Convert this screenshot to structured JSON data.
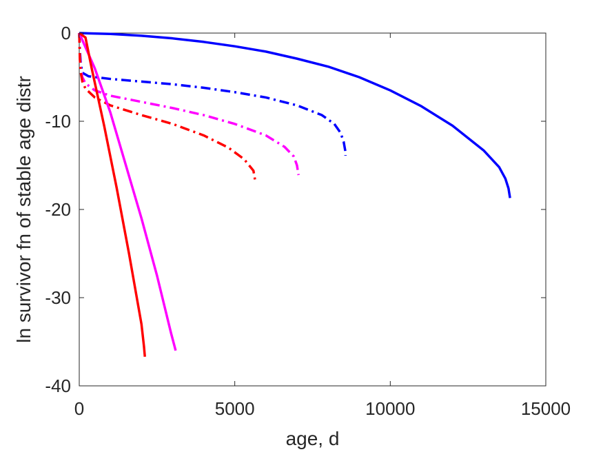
{
  "chart_data": {
    "type": "line",
    "title": "",
    "xlabel": "age, d",
    "ylabel": "ln survivor fn of stable age distr",
    "xlim": [
      0,
      15000
    ],
    "ylim": [
      -40,
      0
    ],
    "xticks": [
      0,
      5000,
      10000,
      15000
    ],
    "yticks": [
      0,
      -10,
      -20,
      -30,
      -40
    ],
    "xtick_labels": [
      "0",
      "5000",
      "10000",
      "15000"
    ],
    "ytick_labels": [
      "0",
      "-10",
      "-20",
      "-30",
      "-40"
    ],
    "grid": false,
    "legend": "none",
    "series": [
      {
        "color": "#0000ff",
        "style": "solid",
        "points": [
          [
            0,
            0
          ],
          [
            1000,
            -0.1
          ],
          [
            2000,
            -0.3
          ],
          [
            3000,
            -0.6
          ],
          [
            4000,
            -1.0
          ],
          [
            5000,
            -1.5
          ],
          [
            6000,
            -2.1
          ],
          [
            7000,
            -2.9
          ],
          [
            8000,
            -3.8
          ],
          [
            9000,
            -5.0
          ],
          [
            10000,
            -6.5
          ],
          [
            11000,
            -8.3
          ],
          [
            12000,
            -10.5
          ],
          [
            13000,
            -13.3
          ],
          [
            13500,
            -15.2
          ],
          [
            13700,
            -16.5
          ],
          [
            13800,
            -17.6
          ],
          [
            13850,
            -18.7
          ]
        ]
      },
      {
        "color": "#0000ff",
        "style": "dashdot",
        "points": [
          [
            0,
            0
          ],
          [
            20,
            -2.0
          ],
          [
            50,
            -3.5
          ],
          [
            100,
            -4.5
          ],
          [
            300,
            -4.9
          ],
          [
            1000,
            -5.2
          ],
          [
            2000,
            -5.5
          ],
          [
            3000,
            -5.8
          ],
          [
            4000,
            -6.2
          ],
          [
            5000,
            -6.7
          ],
          [
            6000,
            -7.3
          ],
          [
            7000,
            -8.2
          ],
          [
            7800,
            -9.3
          ],
          [
            8200,
            -10.3
          ],
          [
            8400,
            -11.3
          ],
          [
            8500,
            -12.3
          ],
          [
            8550,
            -13.3
          ],
          [
            8560,
            -13.9
          ]
        ]
      },
      {
        "color": "#ff00ff",
        "style": "dashdot",
        "points": [
          [
            0,
            0
          ],
          [
            20,
            -2.5
          ],
          [
            50,
            -4.0
          ],
          [
            100,
            -5.0
          ],
          [
            200,
            -5.7
          ],
          [
            500,
            -6.5
          ],
          [
            1000,
            -7.1
          ],
          [
            2000,
            -7.8
          ],
          [
            3000,
            -8.5
          ],
          [
            4000,
            -9.3
          ],
          [
            5000,
            -10.3
          ],
          [
            6000,
            -11.6
          ],
          [
            6600,
            -12.9
          ],
          [
            6900,
            -14.0
          ],
          [
            7000,
            -15.0
          ],
          [
            7050,
            -16.1
          ]
        ]
      },
      {
        "color": "#ff0000",
        "style": "dashdot",
        "points": [
          [
            0,
            0
          ],
          [
            20,
            -3.0
          ],
          [
            50,
            -4.5
          ],
          [
            100,
            -5.5
          ],
          [
            200,
            -6.3
          ],
          [
            500,
            -7.3
          ],
          [
            1000,
            -8.2
          ],
          [
            2000,
            -9.3
          ],
          [
            3000,
            -10.3
          ],
          [
            4000,
            -11.6
          ],
          [
            4800,
            -13.0
          ],
          [
            5300,
            -14.3
          ],
          [
            5600,
            -15.6
          ],
          [
            5650,
            -16.6
          ]
        ]
      },
      {
        "color": "#ff00ff",
        "style": "solid",
        "points": [
          [
            0,
            0
          ],
          [
            500,
            -4.0
          ],
          [
            1000,
            -9.0
          ],
          [
            1500,
            -15.0
          ],
          [
            2000,
            -21.0
          ],
          [
            2500,
            -27.5
          ],
          [
            2950,
            -34.0
          ],
          [
            3100,
            -36.0
          ]
        ]
      },
      {
        "color": "#ff0000",
        "style": "solid",
        "points": [
          [
            0,
            0
          ],
          [
            200,
            -0.5
          ],
          [
            400,
            -4.0
          ],
          [
            800,
            -10.5
          ],
          [
            1200,
            -17.5
          ],
          [
            1600,
            -25.0
          ],
          [
            2000,
            -33.0
          ],
          [
            2080,
            -35.5
          ],
          [
            2110,
            -36.7
          ]
        ]
      }
    ]
  }
}
